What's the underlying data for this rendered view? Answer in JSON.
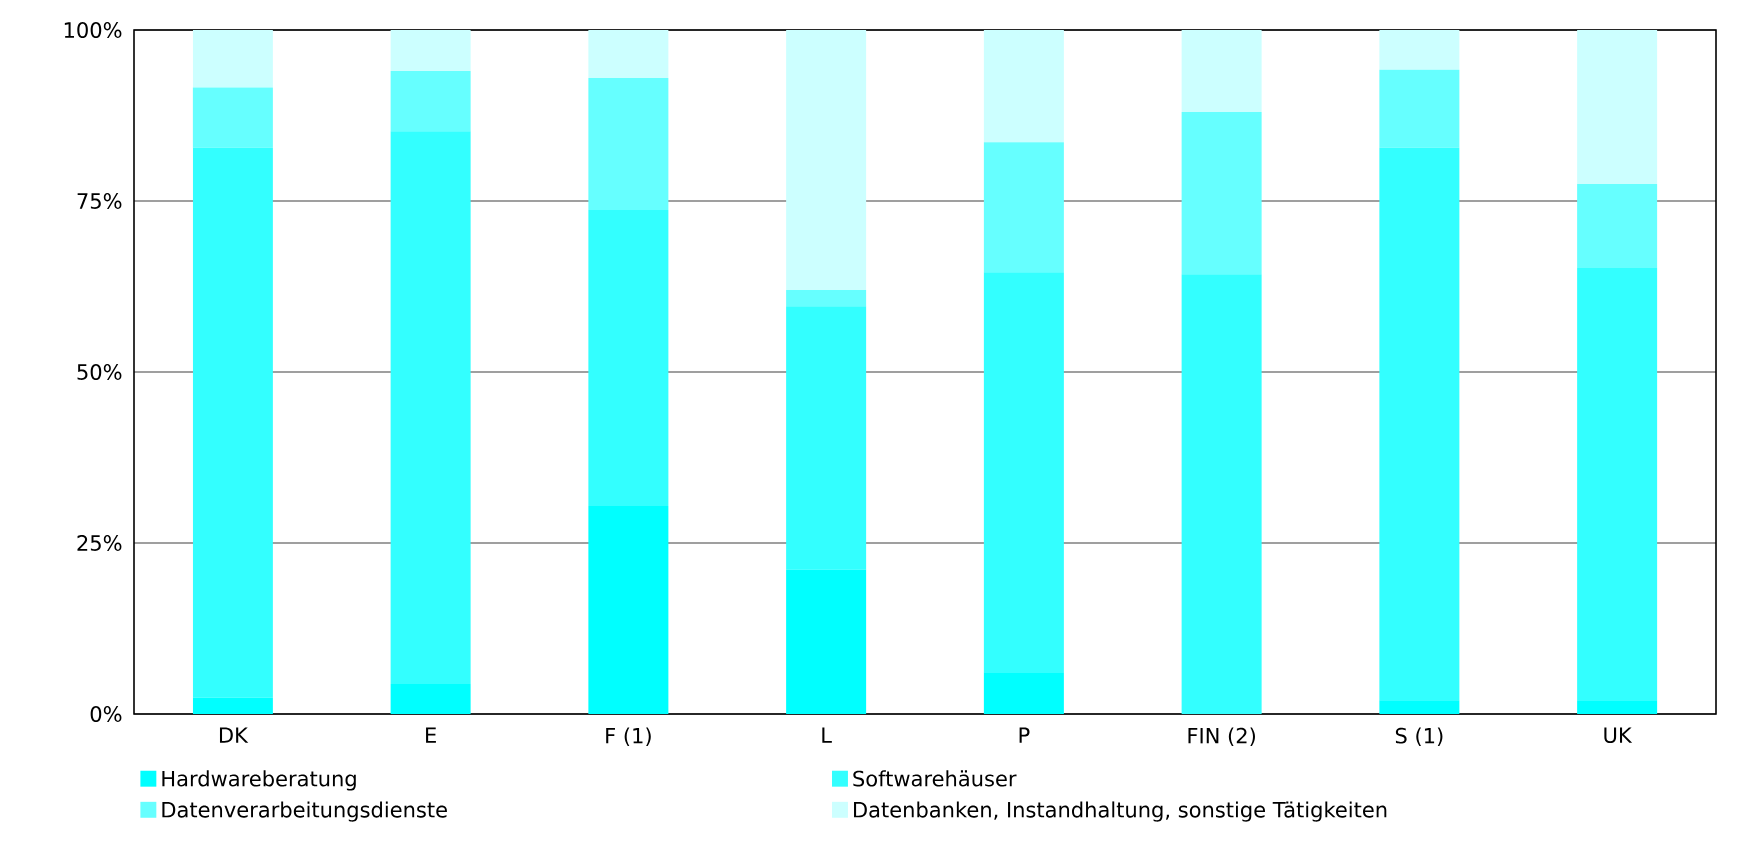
{
  "chart_data": {
    "type": "bar",
    "stacked": true,
    "categories": [
      "DK",
      "E",
      "F (1)",
      "L",
      "P",
      "FIN (2)",
      "S (1)",
      "UK"
    ],
    "series": [
      {
        "name": "Hardwareberatung",
        "color": "#00ffff",
        "values": [
          2.4,
          4.4,
          30.4,
          21.1,
          6.1,
          0,
          2.0,
          2.0
        ]
      },
      {
        "name": "Softwarehäuser",
        "color": "#33ffff",
        "values": [
          80.4,
          80.8,
          43.3,
          38.5,
          58.5,
          64.3,
          80.8,
          63.2
        ]
      },
      {
        "name": "Datenverarbeitungsdienste",
        "color": "#66ffff",
        "values": [
          8.8,
          8.8,
          19.3,
          2.4,
          19.0,
          23.7,
          11.4,
          12.3
        ]
      },
      {
        "name": "Datenbanken, Instandhaltung, sonstige Tätigkeiten",
        "color": "#ccffff",
        "values": [
          8.4,
          6.0,
          7.0,
          38.0,
          16.4,
          12.0,
          5.8,
          22.5
        ]
      }
    ],
    "ylim": [
      0,
      100
    ],
    "yticks": [
      {
        "value": 0,
        "label": "0%"
      },
      {
        "value": 25,
        "label": "25%"
      },
      {
        "value": 50,
        "label": "50%"
      },
      {
        "value": 75,
        "label": "75%"
      },
      {
        "value": 100,
        "label": "100%"
      }
    ],
    "grid": "y",
    "legend": "bottom"
  }
}
